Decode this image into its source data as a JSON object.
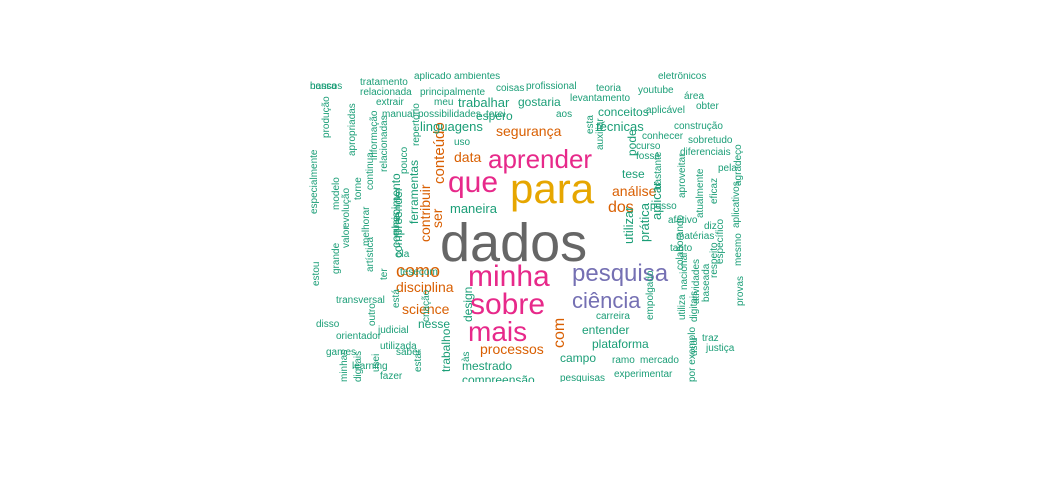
{
  "colors": {
    "dark_gray": "#666666",
    "gold": "#E6A600",
    "magenta": "#E7298A",
    "purple": "#7570B3",
    "orange": "#D95F02",
    "teal": "#1B9E77"
  },
  "words": [
    {
      "text": "dados",
      "color": "dark_gray"
    },
    {
      "text": "para",
      "color": "gold"
    },
    {
      "text": "que",
      "color": "magenta"
    },
    {
      "text": "minha",
      "color": "magenta"
    },
    {
      "text": "sobre",
      "color": "magenta"
    },
    {
      "text": "aprender",
      "color": "magenta"
    },
    {
      "text": "mais",
      "color": "magenta"
    },
    {
      "text": "pesquisa",
      "color": "purple"
    },
    {
      "text": "ciência",
      "color": "purple"
    },
    {
      "text": "com",
      "color": "orange"
    },
    {
      "text": "como",
      "color": "orange"
    },
    {
      "text": "disciplina",
      "color": "orange"
    },
    {
      "text": "processos",
      "color": "orange"
    },
    {
      "text": "science",
      "color": "orange"
    },
    {
      "text": "dos",
      "color": "orange"
    },
    {
      "text": "análise",
      "color": "orange"
    },
    {
      "text": "segurança",
      "color": "orange"
    },
    {
      "text": "data",
      "color": "orange"
    },
    {
      "text": "conteúdo",
      "color": "orange"
    },
    {
      "text": "contribuir",
      "color": "orange"
    },
    {
      "text": "ser",
      "color": "orange"
    },
    {
      "text": "trabalhar",
      "color": "teal"
    },
    {
      "text": "linguagens",
      "color": "teal"
    },
    {
      "text": "espero",
      "color": "teal"
    },
    {
      "text": "gostaria",
      "color": "teal"
    },
    {
      "text": "conceitos",
      "color": "teal"
    },
    {
      "text": "técnicas",
      "color": "teal"
    },
    {
      "text": "maneira",
      "color": "teal"
    },
    {
      "text": "tese",
      "color": "teal"
    },
    {
      "text": "utilizar",
      "color": "teal"
    },
    {
      "text": "prática",
      "color": "teal"
    },
    {
      "text": "aplicar",
      "color": "teal"
    },
    {
      "text": "entender",
      "color": "teal"
    },
    {
      "text": "plataforma",
      "color": "teal"
    },
    {
      "text": "campo",
      "color": "teal"
    },
    {
      "text": "mestrado",
      "color": "teal"
    },
    {
      "text": "compreensão",
      "color": "teal"
    },
    {
      "text": "nesse",
      "color": "teal"
    },
    {
      "text": "design",
      "color": "teal"
    },
    {
      "text": "trabalho",
      "color": "teal"
    },
    {
      "text": "ferramentas",
      "color": "teal"
    },
    {
      "text": "conhecimento",
      "color": "teal"
    },
    {
      "text": "compreender",
      "color": "teal"
    },
    {
      "text": "pode",
      "color": "teal"
    },
    {
      "text": "tratamento",
      "color": "teal"
    },
    {
      "text": "aplicado ambientes",
      "color": "teal"
    },
    {
      "text": "relacionada",
      "color": "teal"
    },
    {
      "text": "principalmente",
      "color": "teal"
    },
    {
      "text": "coisas",
      "color": "teal"
    },
    {
      "text": "profissional",
      "color": "teal"
    },
    {
      "text": "teoria",
      "color": "teal"
    },
    {
      "text": "eletrônicos",
      "color": "teal"
    },
    {
      "text": "youtube",
      "color": "teal"
    },
    {
      "text": "levantamento",
      "color": "teal"
    },
    {
      "text": "área",
      "color": "teal"
    },
    {
      "text": "obter",
      "color": "teal"
    },
    {
      "text": "extrair",
      "color": "teal"
    },
    {
      "text": "meu",
      "color": "teal"
    },
    {
      "text": "aplicável",
      "color": "teal"
    },
    {
      "text": "manual",
      "color": "teal"
    },
    {
      "text": "possibilidades",
      "color": "teal"
    },
    {
      "text": "terei",
      "color": "teal"
    },
    {
      "text": "aos",
      "color": "teal"
    },
    {
      "text": "construção",
      "color": "teal"
    },
    {
      "text": "conhecer",
      "color": "teal"
    },
    {
      "text": "curso",
      "color": "teal"
    },
    {
      "text": "sobretudo",
      "color": "teal"
    },
    {
      "text": "diferenciais",
      "color": "teal"
    },
    {
      "text": "fosse",
      "color": "teal"
    },
    {
      "text": "uso",
      "color": "teal"
    },
    {
      "text": "esta",
      "color": "teal"
    },
    {
      "text": "auxiliar",
      "color": "teal"
    },
    {
      "text": "pela",
      "color": "teal"
    },
    {
      "text": "bastante",
      "color": "teal"
    },
    {
      "text": "aproveitar",
      "color": "teal"
    },
    {
      "text": "atualmente",
      "color": "teal"
    },
    {
      "text": "agradeço",
      "color": "teal"
    },
    {
      "text": "aplicativos",
      "color": "teal"
    },
    {
      "text": "eficaz",
      "color": "teal"
    },
    {
      "text": "posso",
      "color": "teal"
    },
    {
      "text": "afetivo",
      "color": "teal"
    },
    {
      "text": "diz",
      "color": "teal"
    },
    {
      "text": "matérias",
      "color": "teal"
    },
    {
      "text": "tanto",
      "color": "teal"
    },
    {
      "text": "colaborando",
      "color": "teal"
    },
    {
      "text": "específico",
      "color": "teal"
    },
    {
      "text": "mesmo",
      "color": "teal"
    },
    {
      "text": "baseada",
      "color": "teal"
    },
    {
      "text": "respeito",
      "color": "teal"
    },
    {
      "text": "nacional",
      "color": "teal"
    },
    {
      "text": "atividades",
      "color": "teal"
    },
    {
      "text": "utiliza",
      "color": "teal"
    },
    {
      "text": "empolgado",
      "color": "teal"
    },
    {
      "text": "digitais",
      "color": "teal"
    },
    {
      "text": "carreira",
      "color": "teal"
    },
    {
      "text": "ramo",
      "color": "teal"
    },
    {
      "text": "mercado",
      "color": "teal"
    },
    {
      "text": "experimentar",
      "color": "teal"
    },
    {
      "text": "traz",
      "color": "teal"
    },
    {
      "text": "justiça",
      "color": "teal"
    },
    {
      "text": "usar",
      "color": "teal"
    },
    {
      "text": "provas",
      "color": "teal"
    },
    {
      "text": "pesquisas",
      "color": "teal"
    },
    {
      "text": "às",
      "color": "teal"
    },
    {
      "text": "criação",
      "color": "teal"
    },
    {
      "text": "saber",
      "color": "teal"
    },
    {
      "text": "fazer",
      "color": "teal"
    },
    {
      "text": "estar",
      "color": "teal"
    },
    {
      "text": "learning",
      "color": "teal"
    },
    {
      "text": "utilizada",
      "color": "teal"
    },
    {
      "text": "outro",
      "color": "teal"
    },
    {
      "text": "judicial",
      "color": "teal"
    },
    {
      "text": "games",
      "color": "teal"
    },
    {
      "text": "orientador",
      "color": "teal"
    },
    {
      "text": "disso",
      "color": "teal"
    },
    {
      "text": "transversal",
      "color": "teal"
    },
    {
      "text": "está",
      "color": "teal"
    },
    {
      "text": "ter",
      "color": "teal"
    },
    {
      "text": "artística",
      "color": "teal"
    },
    {
      "text": "tesecom",
      "color": "teal"
    },
    {
      "text": "ela",
      "color": "teal"
    },
    {
      "text": "melhorar",
      "color": "teal"
    },
    {
      "text": "quais",
      "color": "teal"
    },
    {
      "text": "estou",
      "color": "teal"
    },
    {
      "text": "grande",
      "color": "teal"
    },
    {
      "text": "valor",
      "color": "teal"
    },
    {
      "text": "evolução",
      "color": "teal"
    },
    {
      "text": "modelo",
      "color": "teal"
    },
    {
      "text": "torne",
      "color": "teal"
    },
    {
      "text": "continua",
      "color": "teal"
    },
    {
      "text": "relacionadas",
      "color": "teal"
    },
    {
      "text": "pouco",
      "color": "teal"
    },
    {
      "text": "informação",
      "color": "teal"
    },
    {
      "text": "apropriadas",
      "color": "teal"
    },
    {
      "text": "produção",
      "color": "teal"
    },
    {
      "text": "especialmente",
      "color": "teal"
    },
    {
      "text": "repertório",
      "color": "teal"
    },
    {
      "text": "por exemplo",
      "color": "teal"
    },
    {
      "text": "minhas",
      "color": "teal"
    },
    {
      "text": "digitais",
      "color": "teal"
    },
    {
      "text": "usei",
      "color": "teal"
    },
    {
      "text": "nossa",
      "color": "teal"
    },
    {
      "text": "bancos",
      "color": "teal"
    }
  ]
}
